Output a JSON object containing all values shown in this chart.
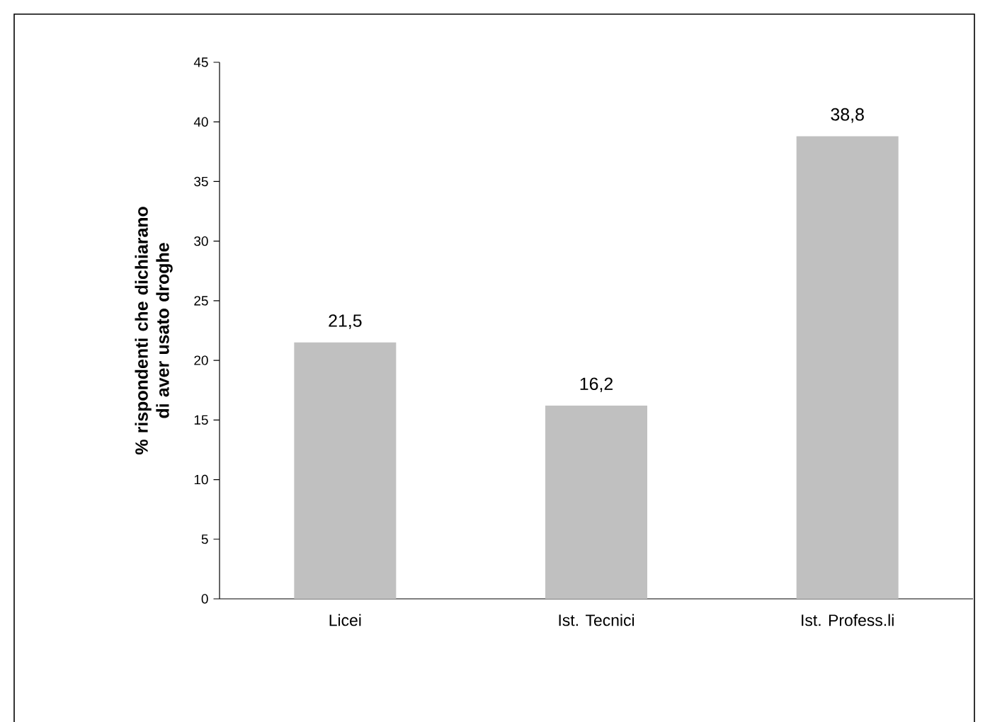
{
  "chart_data": {
    "type": "bar",
    "ylabel": "% rispondenti che dichiarano di aver usato droghe",
    "categories": [
      "Licei",
      "Ist. Tecnici",
      "Ist. Profess.li"
    ],
    "values": [
      21.5,
      16.2,
      38.8
    ],
    "value_labels": [
      "21,5",
      "16,2",
      "38,8"
    ],
    "color": "#c0c0c0",
    "ylim": [
      0,
      45
    ],
    "yticks": [
      0,
      5,
      10,
      15,
      20,
      25,
      30,
      35,
      40,
      45
    ],
    "grid": false
  }
}
